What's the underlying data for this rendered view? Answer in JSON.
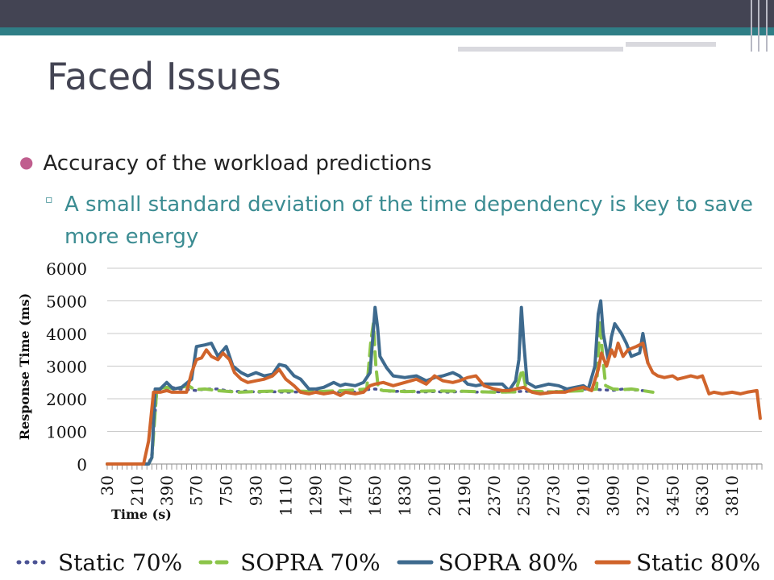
{
  "slide": {
    "title": "Faced Issues",
    "bullet_1": "Accuracy of the workload predictions",
    "bullet_2": "A small standard deviation of the time dependency is key to save more energy"
  },
  "colors": {
    "header_dark": "#434453",
    "header_teal": "#2f7e86",
    "sub_bullet_text": "#3b8c92",
    "bullet_dot": "#c05e8e"
  },
  "chart_data": {
    "type": "line",
    "title": "",
    "xlabel": "Time (s)",
    "ylabel": "Response Time (ms)",
    "ylim": [
      0,
      6000
    ],
    "yticks": [
      0,
      1000,
      2000,
      3000,
      4000,
      5000,
      6000
    ],
    "x_tick_labels": [
      "30",
      "210",
      "390",
      "570",
      "750",
      "930",
      "1110",
      "1290",
      "1470",
      "1650",
      "1830",
      "2010",
      "2190",
      "2370",
      "2550",
      "2730",
      "2910",
      "3090",
      "3270",
      "3450",
      "3630",
      "3810"
    ],
    "grid": "horizontal",
    "legend_position": "bottom",
    "series": [
      {
        "name": "Static 70%",
        "color": "#4b5394",
        "style": "dotted",
        "points": [
          [
            30,
            0
          ],
          [
            280,
            0
          ],
          [
            300,
            300
          ],
          [
            330,
            2200
          ],
          [
            380,
            2250
          ],
          [
            420,
            2350
          ],
          [
            470,
            2300
          ],
          [
            520,
            2280
          ],
          [
            570,
            2250
          ],
          [
            620,
            2300
          ],
          [
            700,
            2300
          ],
          [
            750,
            2250
          ],
          [
            800,
            2220
          ],
          [
            880,
            2240
          ],
          [
            930,
            2200
          ],
          [
            1000,
            2220
          ],
          [
            1110,
            2200
          ],
          [
            1200,
            2210
          ],
          [
            1290,
            2230
          ],
          [
            1380,
            2200
          ],
          [
            1470,
            2220
          ],
          [
            1550,
            2200
          ],
          [
            1600,
            2280
          ],
          [
            1650,
            2300
          ],
          [
            1700,
            2250
          ],
          [
            1760,
            2220
          ],
          [
            1830,
            2240
          ],
          [
            1900,
            2200
          ],
          [
            2010,
            2220
          ],
          [
            2100,
            2200
          ],
          [
            2190,
            2230
          ],
          [
            2280,
            2200
          ],
          [
            2370,
            2220
          ],
          [
            2450,
            2200
          ],
          [
            2550,
            2230
          ],
          [
            2650,
            2210
          ],
          [
            2730,
            2220
          ],
          [
            2820,
            2250
          ],
          [
            2910,
            2300
          ],
          [
            3000,
            2280
          ],
          [
            3090,
            2260
          ],
          [
            3150,
            2300
          ],
          [
            3200,
            2280
          ],
          [
            3270,
            2250
          ],
          [
            3330,
            2200
          ]
        ]
      },
      {
        "name": "SOPRA 70%",
        "color": "#8cc54a",
        "style": "dashed",
        "points": [
          [
            30,
            0
          ],
          [
            280,
            0
          ],
          [
            300,
            200
          ],
          [
            330,
            2300
          ],
          [
            390,
            2350
          ],
          [
            440,
            2300
          ],
          [
            520,
            2400
          ],
          [
            560,
            2280
          ],
          [
            620,
            2300
          ],
          [
            700,
            2250
          ],
          [
            750,
            2230
          ],
          [
            830,
            2200
          ],
          [
            930,
            2220
          ],
          [
            1110,
            2240
          ],
          [
            1290,
            2220
          ],
          [
            1470,
            2250
          ],
          [
            1600,
            2300
          ],
          [
            1625,
            3800
          ],
          [
            1640,
            4300
          ],
          [
            1655,
            3000
          ],
          [
            1670,
            2300
          ],
          [
            1700,
            2250
          ],
          [
            1830,
            2220
          ],
          [
            2010,
            2240
          ],
          [
            2190,
            2230
          ],
          [
            2370,
            2200
          ],
          [
            2500,
            2210
          ],
          [
            2540,
            2900
          ],
          [
            2560,
            2400
          ],
          [
            2580,
            2230
          ],
          [
            2730,
            2210
          ],
          [
            2910,
            2250
          ],
          [
            2990,
            2300
          ],
          [
            3010,
            4400
          ],
          [
            3025,
            3400
          ],
          [
            3045,
            2400
          ],
          [
            3090,
            2300
          ],
          [
            3150,
            2280
          ],
          [
            3200,
            2300
          ],
          [
            3270,
            2250
          ],
          [
            3330,
            2200
          ]
        ]
      },
      {
        "name": "SOPRA 80%",
        "color": "#3e6a8e",
        "style": "solid",
        "points": [
          [
            30,
            0
          ],
          [
            280,
            0
          ],
          [
            300,
            200
          ],
          [
            320,
            2300
          ],
          [
            350,
            2300
          ],
          [
            390,
            2500
          ],
          [
            430,
            2300
          ],
          [
            480,
            2350
          ],
          [
            540,
            2600
          ],
          [
            570,
            3600
          ],
          [
            620,
            3650
          ],
          [
            660,
            3700
          ],
          [
            700,
            3300
          ],
          [
            750,
            3600
          ],
          [
            790,
            3000
          ],
          [
            840,
            2800
          ],
          [
            880,
            2700
          ],
          [
            930,
            2800
          ],
          [
            980,
            2700
          ],
          [
            1030,
            2750
          ],
          [
            1070,
            3050
          ],
          [
            1110,
            3000
          ],
          [
            1160,
            2700
          ],
          [
            1200,
            2600
          ],
          [
            1250,
            2300
          ],
          [
            1290,
            2300
          ],
          [
            1340,
            2350
          ],
          [
            1400,
            2500
          ],
          [
            1440,
            2400
          ],
          [
            1470,
            2450
          ],
          [
            1530,
            2400
          ],
          [
            1580,
            2500
          ],
          [
            1620,
            2800
          ],
          [
            1640,
            4100
          ],
          [
            1650,
            4800
          ],
          [
            1665,
            4200
          ],
          [
            1680,
            3300
          ],
          [
            1720,
            2950
          ],
          [
            1760,
            2700
          ],
          [
            1830,
            2650
          ],
          [
            1900,
            2700
          ],
          [
            1960,
            2550
          ],
          [
            2010,
            2650
          ],
          [
            2060,
            2700
          ],
          [
            2120,
            2800
          ],
          [
            2160,
            2700
          ],
          [
            2210,
            2450
          ],
          [
            2260,
            2400
          ],
          [
            2310,
            2450
          ],
          [
            2370,
            2450
          ],
          [
            2420,
            2450
          ],
          [
            2460,
            2250
          ],
          [
            2500,
            2550
          ],
          [
            2520,
            3200
          ],
          [
            2535,
            4800
          ],
          [
            2550,
            3700
          ],
          [
            2570,
            2500
          ],
          [
            2620,
            2350
          ],
          [
            2700,
            2450
          ],
          [
            2760,
            2400
          ],
          [
            2810,
            2300
          ],
          [
            2860,
            2350
          ],
          [
            2910,
            2400
          ],
          [
            2940,
            2300
          ],
          [
            2980,
            3000
          ],
          [
            3000,
            4600
          ],
          [
            3015,
            5000
          ],
          [
            3030,
            4000
          ],
          [
            3060,
            3200
          ],
          [
            3080,
            3900
          ],
          [
            3100,
            4300
          ],
          [
            3140,
            4000
          ],
          [
            3170,
            3700
          ],
          [
            3200,
            3300
          ],
          [
            3250,
            3400
          ],
          [
            3270,
            4000
          ],
          [
            3300,
            3100
          ]
        ]
      },
      {
        "name": "Static 80%",
        "color": "#d0642b",
        "style": "solid",
        "points": [
          [
            30,
            0
          ],
          [
            250,
            0
          ],
          [
            280,
            700
          ],
          [
            310,
            2200
          ],
          [
            350,
            2200
          ],
          [
            390,
            2250
          ],
          [
            420,
            2200
          ],
          [
            460,
            2200
          ],
          [
            510,
            2200
          ],
          [
            540,
            2800
          ],
          [
            570,
            3200
          ],
          [
            600,
            3250
          ],
          [
            630,
            3500
          ],
          [
            660,
            3300
          ],
          [
            700,
            3200
          ],
          [
            730,
            3400
          ],
          [
            770,
            3200
          ],
          [
            800,
            2800
          ],
          [
            840,
            2600
          ],
          [
            880,
            2500
          ],
          [
            930,
            2550
          ],
          [
            980,
            2600
          ],
          [
            1030,
            2700
          ],
          [
            1070,
            2900
          ],
          [
            1110,
            2600
          ],
          [
            1160,
            2400
          ],
          [
            1200,
            2200
          ],
          [
            1250,
            2150
          ],
          [
            1290,
            2200
          ],
          [
            1340,
            2150
          ],
          [
            1400,
            2200
          ],
          [
            1440,
            2100
          ],
          [
            1470,
            2200
          ],
          [
            1530,
            2150
          ],
          [
            1580,
            2200
          ],
          [
            1620,
            2400
          ],
          [
            1650,
            2450
          ],
          [
            1700,
            2500
          ],
          [
            1760,
            2400
          ],
          [
            1830,
            2500
          ],
          [
            1900,
            2600
          ],
          [
            1960,
            2450
          ],
          [
            2010,
            2700
          ],
          [
            2060,
            2550
          ],
          [
            2120,
            2500
          ],
          [
            2160,
            2550
          ],
          [
            2210,
            2650
          ],
          [
            2260,
            2700
          ],
          [
            2310,
            2400
          ],
          [
            2370,
            2300
          ],
          [
            2420,
            2250
          ],
          [
            2460,
            2250
          ],
          [
            2500,
            2300
          ],
          [
            2550,
            2350
          ],
          [
            2600,
            2200
          ],
          [
            2650,
            2150
          ],
          [
            2730,
            2200
          ],
          [
            2800,
            2200
          ],
          [
            2860,
            2300
          ],
          [
            2910,
            2350
          ],
          [
            2960,
            2250
          ],
          [
            3000,
            2900
          ],
          [
            3020,
            3400
          ],
          [
            3050,
            3000
          ],
          [
            3080,
            3500
          ],
          [
            3100,
            3300
          ],
          [
            3120,
            3700
          ],
          [
            3150,
            3300
          ],
          [
            3180,
            3500
          ],
          [
            3230,
            3600
          ],
          [
            3270,
            3700
          ],
          [
            3300,
            3100
          ],
          [
            3330,
            2800
          ],
          [
            3360,
            2700
          ],
          [
            3400,
            2650
          ],
          [
            3450,
            2700
          ],
          [
            3480,
            2600
          ],
          [
            3520,
            2650
          ],
          [
            3560,
            2700
          ],
          [
            3600,
            2650
          ],
          [
            3630,
            2700
          ],
          [
            3670,
            2150
          ],
          [
            3700,
            2200
          ],
          [
            3750,
            2150
          ],
          [
            3810,
            2200
          ],
          [
            3860,
            2150
          ],
          [
            3900,
            2200
          ],
          [
            3960,
            2250
          ],
          [
            3980,
            1400
          ]
        ]
      }
    ]
  }
}
